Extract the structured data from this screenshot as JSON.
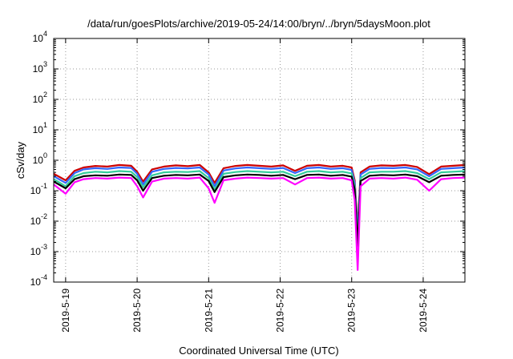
{
  "chart_data": {
    "type": "line",
    "title": "/data/run/goesPlots/archive/2019-05-24/14:00/bryn/../bryn/5daysMoon.plot",
    "xlabel": "Coordinated Universal Time (UTC)",
    "ylabel": "cSv/day",
    "y_scale": "log",
    "ylim": [
      0.0001,
      10000
    ],
    "xlim": [
      "2019-05-18T20:00",
      "2019-05-24T14:00"
    ],
    "grid": true,
    "legend": "none",
    "y_ticks": [
      {
        "base": "10",
        "exp": "-4",
        "value": 0.0001
      },
      {
        "base": "10",
        "exp": "-3",
        "value": 0.001
      },
      {
        "base": "10",
        "exp": "-2",
        "value": 0.01
      },
      {
        "base": "10",
        "exp": "-1",
        "value": 0.1
      },
      {
        "base": "10",
        "exp": "0",
        "value": 1
      },
      {
        "base": "10",
        "exp": "1",
        "value": 10
      },
      {
        "base": "10",
        "exp": "2",
        "value": 100
      },
      {
        "base": "10",
        "exp": "3",
        "value": 1000
      },
      {
        "base": "10",
        "exp": "4",
        "value": 10000
      }
    ],
    "x_ticks": [
      {
        "label": "2019-5-19",
        "value": "2019-05-19T00:00"
      },
      {
        "label": "2019-5-20",
        "value": "2019-05-20T00:00"
      },
      {
        "label": "2019-5-21",
        "value": "2019-05-21T00:00"
      },
      {
        "label": "2019-5-22",
        "value": "2019-05-22T00:00"
      },
      {
        "label": "2019-5-23",
        "value": "2019-05-23T00:00"
      },
      {
        "label": "2019-5-24",
        "value": "2019-05-24T00:00"
      }
    ],
    "x": [
      "2019-05-18T20:00",
      "2019-05-19T00:00",
      "2019-05-19T03:00",
      "2019-05-19T06:00",
      "2019-05-19T10:00",
      "2019-05-19T14:00",
      "2019-05-19T18:00",
      "2019-05-19T22:00",
      "2019-05-20T00:00",
      "2019-05-20T02:00",
      "2019-05-20T05:00",
      "2019-05-20T09:00",
      "2019-05-20T13:00",
      "2019-05-20T17:00",
      "2019-05-20T21:00",
      "2019-05-21T00:00",
      "2019-05-21T02:00",
      "2019-05-21T05:00",
      "2019-05-21T09:00",
      "2019-05-21T13:00",
      "2019-05-21T17:00",
      "2019-05-21T21:00",
      "2019-05-22T01:00",
      "2019-05-22T05:00",
      "2019-05-22T09:00",
      "2019-05-22T13:00",
      "2019-05-22T17:00",
      "2019-05-22T21:00",
      "2019-05-23T00:00",
      "2019-05-23T01:00",
      "2019-05-23T02:00",
      "2019-05-23T03:00",
      "2019-05-23T06:00",
      "2019-05-23T10:00",
      "2019-05-23T14:00",
      "2019-05-23T18:00",
      "2019-05-23T22:00",
      "2019-05-24T02:00",
      "2019-05-24T06:00",
      "2019-05-24T10:00",
      "2019-05-24T14:00"
    ],
    "series": [
      {
        "color": "#cc0000",
        "values": [
          0.36,
          0.22,
          0.45,
          0.58,
          0.65,
          0.62,
          0.7,
          0.66,
          0.42,
          0.2,
          0.5,
          0.62,
          0.68,
          0.64,
          0.7,
          0.4,
          0.18,
          0.55,
          0.65,
          0.7,
          0.66,
          0.62,
          0.68,
          0.45,
          0.66,
          0.7,
          0.62,
          0.66,
          0.58,
          0.22,
          0.006,
          0.4,
          0.62,
          0.68,
          0.66,
          0.7,
          0.6,
          0.35,
          0.62,
          0.66,
          0.7
        ]
      },
      {
        "color": "#3366ff",
        "values": [
          0.3,
          0.18,
          0.38,
          0.5,
          0.55,
          0.52,
          0.58,
          0.56,
          0.36,
          0.16,
          0.42,
          0.52,
          0.56,
          0.54,
          0.58,
          0.34,
          0.14,
          0.46,
          0.54,
          0.58,
          0.55,
          0.52,
          0.56,
          0.38,
          0.55,
          0.58,
          0.52,
          0.55,
          0.48,
          0.18,
          0.004,
          0.34,
          0.52,
          0.56,
          0.55,
          0.58,
          0.5,
          0.3,
          0.52,
          0.55,
          0.58
        ]
      },
      {
        "color": "#33cc99",
        "values": [
          0.24,
          0.14,
          0.3,
          0.38,
          0.42,
          0.4,
          0.44,
          0.42,
          0.28,
          0.13,
          0.32,
          0.4,
          0.42,
          0.41,
          0.44,
          0.26,
          0.11,
          0.36,
          0.41,
          0.44,
          0.42,
          0.4,
          0.42,
          0.3,
          0.42,
          0.44,
          0.4,
          0.42,
          0.37,
          0.14,
          0.0025,
          0.26,
          0.4,
          0.42,
          0.42,
          0.44,
          0.38,
          0.24,
          0.4,
          0.42,
          0.44
        ]
      },
      {
        "color": "#000000",
        "values": [
          0.2,
          0.12,
          0.24,
          0.3,
          0.32,
          0.31,
          0.34,
          0.33,
          0.22,
          0.1,
          0.26,
          0.31,
          0.33,
          0.32,
          0.34,
          0.21,
          0.09,
          0.28,
          0.32,
          0.34,
          0.33,
          0.31,
          0.33,
          0.24,
          0.33,
          0.34,
          0.31,
          0.33,
          0.29,
          0.11,
          0.0015,
          0.21,
          0.31,
          0.33,
          0.32,
          0.34,
          0.3,
          0.19,
          0.31,
          0.33,
          0.34
        ]
      },
      {
        "color": "#ff00ff",
        "values": [
          0.16,
          0.08,
          0.19,
          0.24,
          0.26,
          0.25,
          0.27,
          0.26,
          0.14,
          0.06,
          0.2,
          0.25,
          0.26,
          0.25,
          0.27,
          0.12,
          0.04,
          0.22,
          0.25,
          0.27,
          0.26,
          0.25,
          0.26,
          0.16,
          0.26,
          0.27,
          0.25,
          0.26,
          0.22,
          0.05,
          0.00025,
          0.14,
          0.25,
          0.26,
          0.25,
          0.27,
          0.23,
          0.1,
          0.24,
          0.26,
          0.27
        ]
      }
    ]
  }
}
